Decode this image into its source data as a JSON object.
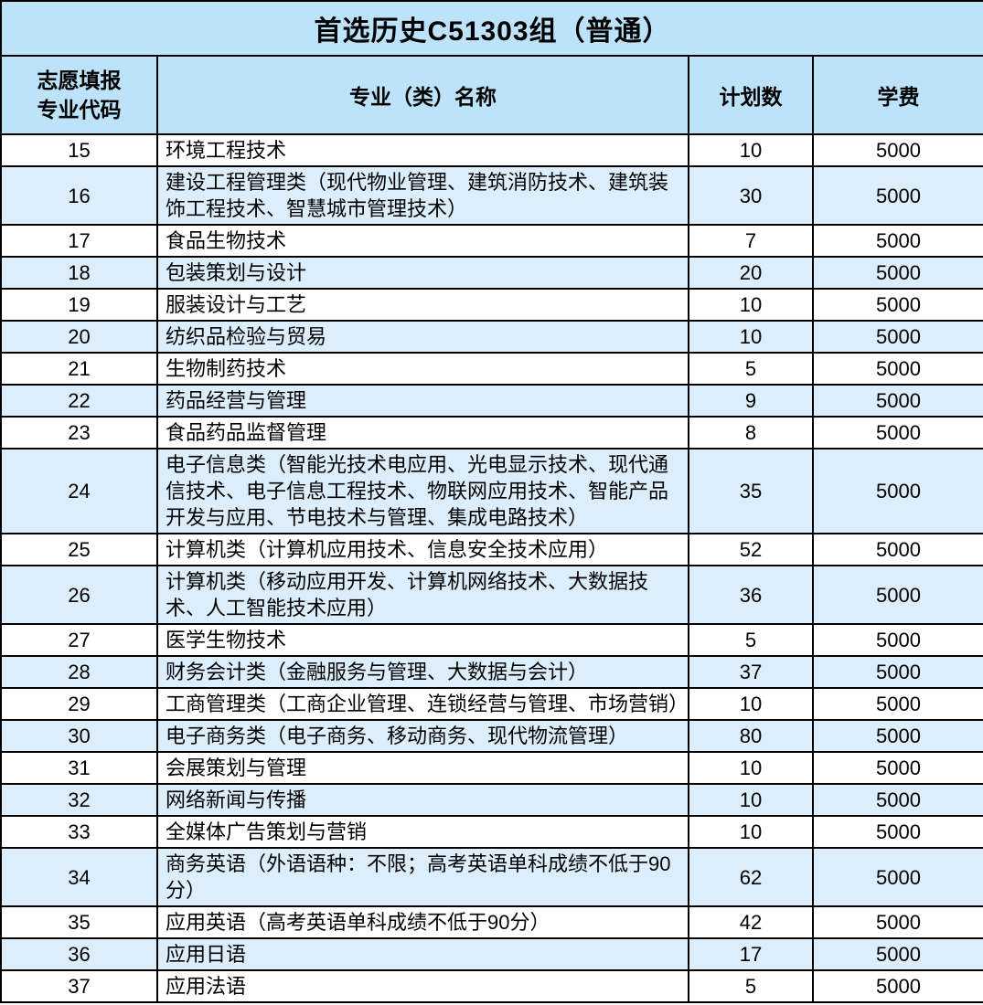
{
  "colors": {
    "header_bg": "#BDE3FA",
    "alt_row_bg": "#DCEEFB",
    "white_row_bg": "#FFFFFF",
    "border": "#000000",
    "text": "#000000"
  },
  "table": {
    "title": "首选历史C51303组（普通）",
    "header": {
      "code_col_line1": "志愿填报",
      "code_col_line2": "专业代码",
      "name_col": "专业（类）名称",
      "plan_col": "计划数",
      "fee_col": "学费"
    },
    "rows": [
      {
        "code": "15",
        "name": "环境工程技术",
        "plan": "10",
        "fee": "5000"
      },
      {
        "code": "16",
        "name": "建设工程管理类（现代物业管理、建筑消防技术、建筑装饰工程技术、智慧城市管理技术）",
        "plan": "30",
        "fee": "5000"
      },
      {
        "code": "17",
        "name": "食品生物技术",
        "plan": "7",
        "fee": "5000"
      },
      {
        "code": "18",
        "name": "包装策划与设计",
        "plan": "20",
        "fee": "5000"
      },
      {
        "code": "19",
        "name": "服装设计与工艺",
        "plan": "10",
        "fee": "5000"
      },
      {
        "code": "20",
        "name": "纺织品检验与贸易",
        "plan": "10",
        "fee": "5000"
      },
      {
        "code": "21",
        "name": "生物制药技术",
        "plan": "5",
        "fee": "5000"
      },
      {
        "code": "22",
        "name": "药品经营与管理",
        "plan": "9",
        "fee": "5000"
      },
      {
        "code": "23",
        "name": "食品药品监督管理",
        "plan": "8",
        "fee": "5000"
      },
      {
        "code": "24",
        "name": "电子信息类（智能光技术电应用、光电显示技术、现代通信技术、电子信息工程技术、物联网应用技术、智能产品开发与应用、节电技术与管理、集成电路技术）",
        "plan": "35",
        "fee": "5000"
      },
      {
        "code": "25",
        "name": "计算机类（计算机应用技术、信息安全技术应用）",
        "plan": "52",
        "fee": "5000"
      },
      {
        "code": "26",
        "name": "计算机类（移动应用开发、计算机网络技术、大数据技术、人工智能技术应用）",
        "plan": "36",
        "fee": "5000"
      },
      {
        "code": "27",
        "name": "医学生物技术",
        "plan": "5",
        "fee": "5000"
      },
      {
        "code": "28",
        "name": "财务会计类（金融服务与管理、大数据与会计）",
        "plan": "37",
        "fee": "5000"
      },
      {
        "code": "29",
        "name": "工商管理类（工商企业管理、连锁经营与管理、市场营销）",
        "plan": "10",
        "fee": "5000"
      },
      {
        "code": "30",
        "name": "电子商务类（电子商务、移动商务、现代物流管理）",
        "plan": "80",
        "fee": "5000"
      },
      {
        "code": "31",
        "name": "会展策划与管理",
        "plan": "10",
        "fee": "5000"
      },
      {
        "code": "32",
        "name": "网络新闻与传播",
        "plan": "10",
        "fee": "5000"
      },
      {
        "code": "33",
        "name": "全媒体广告策划与营销",
        "plan": "10",
        "fee": "5000"
      },
      {
        "code": "34",
        "name": "商务英语（外语语种：不限；高考英语单科成绩不低于90分）",
        "plan": "62",
        "fee": "5000"
      },
      {
        "code": "35",
        "name": "应用英语（高考英语单科成绩不低于90分）",
        "plan": "42",
        "fee": "5000"
      },
      {
        "code": "36",
        "name": "应用日语",
        "plan": "17",
        "fee": "5000"
      },
      {
        "code": "37",
        "name": "应用法语",
        "plan": "5",
        "fee": "5000"
      }
    ]
  }
}
